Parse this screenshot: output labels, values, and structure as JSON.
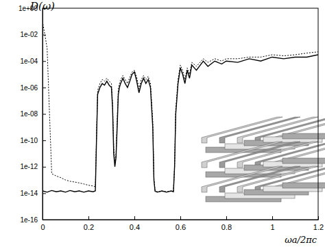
{
  "chart_data": {
    "type": "line",
    "x_label": "ωa/2πc",
    "y_label": "D(ω)",
    "log": "y",
    "xlim": [
      0,
      1.2
    ],
    "xticks": [
      0,
      0.2,
      0.4,
      0.6,
      0.8,
      1,
      1.2
    ],
    "ylim": [
      1e-16,
      1
    ],
    "yticks": [
      {
        "value": 1e-16,
        "label": "1e-16"
      },
      {
        "value": 1e-14,
        "label": "1e-14"
      },
      {
        "value": 1e-12,
        "label": "1e-12"
      },
      {
        "value": 1e-10,
        "label": "1e-10"
      },
      {
        "value": 1e-08,
        "label": "1e-08"
      },
      {
        "value": 1e-06,
        "label": "1e-06"
      },
      {
        "value": 0.0001,
        "label": "1e-04"
      },
      {
        "value": 0.01,
        "label": "1e-02"
      },
      {
        "value": 1,
        "label": "1e+00"
      }
    ],
    "x": [
      0,
      0.02,
      0.04,
      0.06,
      0.08,
      0.1,
      0.12,
      0.14,
      0.16,
      0.18,
      0.2,
      0.22,
      0.23,
      0.235,
      0.24,
      0.25,
      0.26,
      0.27,
      0.28,
      0.29,
      0.3,
      0.305,
      0.31,
      0.315,
      0.32,
      0.325,
      0.33,
      0.335,
      0.34,
      0.35,
      0.36,
      0.37,
      0.38,
      0.39,
      0.4,
      0.41,
      0.42,
      0.43,
      0.44,
      0.45,
      0.46,
      0.47,
      0.48,
      0.485,
      0.49,
      0.5,
      0.52,
      0.54,
      0.56,
      0.57,
      0.575,
      0.58,
      0.59,
      0.6,
      0.61,
      0.62,
      0.63,
      0.64,
      0.65,
      0.67,
      0.7,
      0.72,
      0.75,
      0.78,
      0.8,
      0.85,
      0.9,
      0.95,
      1.0,
      1.05,
      1.1,
      1.15,
      1.2
    ],
    "series": [
      {
        "color": "#000000",
        "line_style": "solid",
        "values": [
          1.5e-14,
          1.2e-14,
          1.6e-14,
          1.3e-14,
          1.5e-14,
          1.2e-14,
          1.6e-14,
          1.3e-14,
          1.5e-14,
          1.2e-14,
          1.5e-14,
          1.3e-14,
          1.5e-14,
          1e-10,
          3e-07,
          1e-06,
          2e-06,
          1.5e-06,
          3e-06,
          1.5e-06,
          1e-06,
          3e-08,
          1e-11,
          1e-12,
          5e-12,
          1e-09,
          3e-07,
          1e-06,
          2e-06,
          5e-06,
          2e-06,
          1e-06,
          3e-06,
          1e-05,
          1.5e-05,
          3e-06,
          4e-07,
          2e-06,
          5e-06,
          2e-06,
          4e-06,
          1e-06,
          1e-09,
          1e-13,
          1.4e-14,
          1.2e-14,
          1.5e-14,
          1.2e-14,
          1.5e-14,
          1.3e-14,
          1e-12,
          1e-08,
          2e-06,
          3e-05,
          1e-05,
          2e-06,
          2e-05,
          5e-06,
          5e-05,
          2e-05,
          0.0001,
          4e-05,
          0.0001,
          6e-05,
          0.0001,
          8e-05,
          0.00015,
          0.0001,
          0.0002,
          0.00015,
          0.0002,
          0.0002,
          0.0003
        ]
      },
      {
        "color": "#000000",
        "line_style": "dotted",
        "values": [
          0.1,
          0.001,
          3e-13,
          2e-13,
          1.5e-13,
          1e-13,
          8e-14,
          7e-14,
          6e-14,
          5e-14,
          4e-14,
          3.5e-14,
          3e-14,
          2e-10,
          6e-07,
          2e-06,
          4e-06,
          3e-06,
          5e-06,
          3e-06,
          2e-06,
          6e-08,
          3e-11,
          2e-12,
          1e-11,
          3e-09,
          8e-07,
          2e-06,
          4e-06,
          8e-06,
          4e-06,
          2e-06,
          6e-06,
          1.5e-05,
          2e-05,
          6e-06,
          8e-07,
          4e-06,
          8e-06,
          4e-06,
          7e-06,
          2e-06,
          3e-09,
          1.5e-13,
          1.6e-14,
          1.3e-14,
          1.4e-14,
          1.3e-14,
          1.4e-14,
          1.5e-14,
          1e-12,
          2e-08,
          4e-06,
          5e-05,
          2e-05,
          4e-06,
          3e-05,
          1e-05,
          8e-05,
          4e-05,
          0.00015,
          8e-05,
          0.00015,
          0.0001,
          0.00015,
          0.00015,
          0.0002,
          0.0002,
          0.0003,
          0.00025,
          0.0003,
          0.0004,
          0.0005
        ]
      }
    ]
  }
}
